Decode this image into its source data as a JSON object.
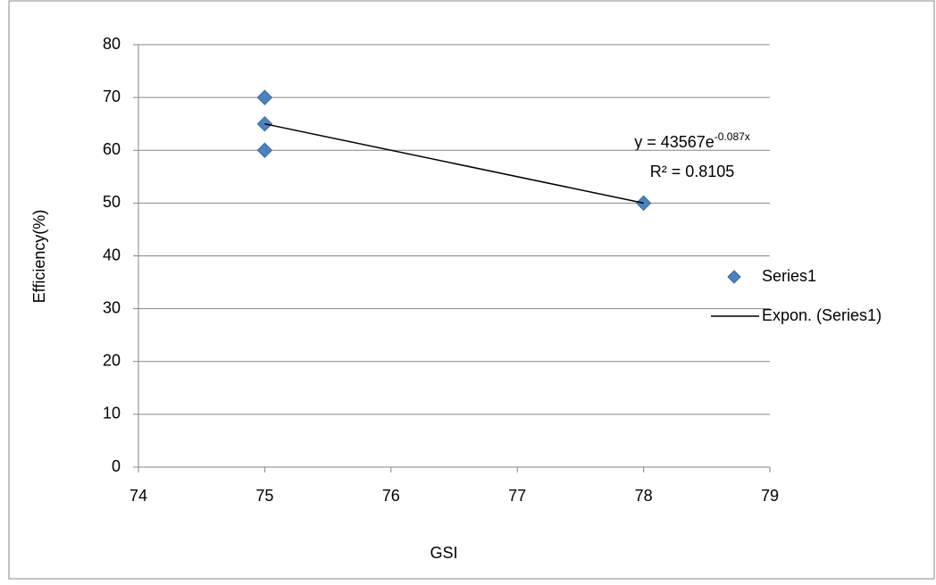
{
  "chart_data": {
    "type": "scatter",
    "x_label": "GSI",
    "y_label": "Efficiency(%)",
    "series": [
      {
        "name": "Series1",
        "color": "#4f81bd",
        "x": [
          75,
          75,
          75,
          78
        ],
        "values": [
          70,
          65,
          60,
          50
        ]
      },
      {
        "name": "Expon. (Series1)",
        "color": "#000000",
        "kind": "trendline",
        "x": [
          75,
          78
        ],
        "values": [
          65,
          50
        ]
      }
    ],
    "equation": {
      "text": "y = 43567e",
      "superscript": "-0.087x"
    },
    "r_squared_label": "R² = 0.8105",
    "xlim": [
      74,
      79
    ],
    "xticks": [
      74,
      75,
      76,
      77,
      78,
      79
    ],
    "ylim": [
      0,
      80
    ],
    "yticks": [
      0,
      10,
      20,
      30,
      40,
      50,
      60,
      70,
      80
    ],
    "grid": true,
    "legend": "right"
  }
}
